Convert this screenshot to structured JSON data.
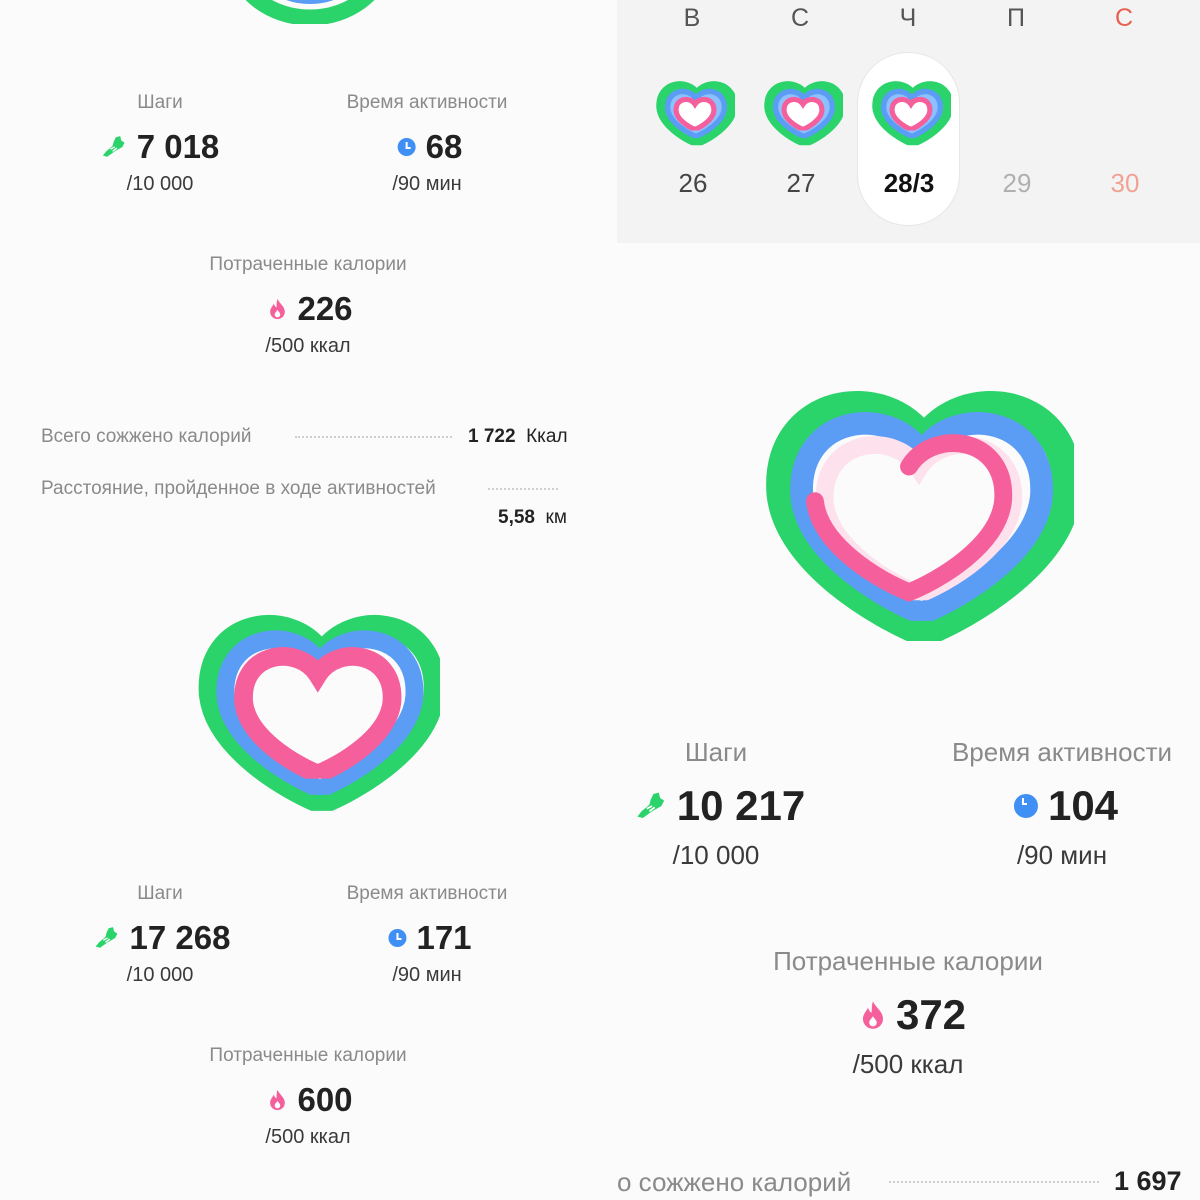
{
  "colors": {
    "green": "#2bd36b",
    "blue": "#5b9cf5",
    "pink": "#f5609c",
    "weekend_red": "#e8614f",
    "muted_gray": "#b0b0b0"
  },
  "left_top": {
    "steps_label": "Шаги",
    "steps_value": "7 018",
    "steps_goal": "/10 000",
    "activity_label": "Время активности",
    "activity_value": "68",
    "activity_goal": "/90 мин",
    "calories_label": "Потраченные калории",
    "calories_value": "226",
    "calories_goal": "/500 ккал",
    "total_burned_label": "Всего сожжено калорий",
    "total_burned_value": "1 722",
    "total_burned_unit": "Ккал",
    "distance_label": "Расстояние, пройденное в ходе активностей",
    "distance_value": "5,58",
    "distance_unit": "км"
  },
  "left_bottom": {
    "steps_label": "Шаги",
    "steps_value": "17 268",
    "steps_goal": "/10 000",
    "activity_label": "Время активности",
    "activity_value": "171",
    "activity_goal": "/90 мин",
    "calories_label": "Потраченные калории",
    "calories_value": "600",
    "calories_goal": "/500 ккал"
  },
  "week": {
    "letters": [
      "В",
      "С",
      "Ч",
      "П",
      "С"
    ],
    "dates": [
      "26",
      "27",
      "28/3",
      "29",
      "30"
    ]
  },
  "right": {
    "steps_label": "Шаги",
    "steps_value": "10 217",
    "steps_goal": "/10 000",
    "activity_label": "Время активности",
    "activity_value": "104",
    "activity_goal": "/90 мин",
    "calories_label": "Потраченные калории",
    "calories_value": "372",
    "calories_goal": "/500 ккал",
    "total_burned_label": "о сожжено калорий",
    "total_burned_value": "1 697"
  },
  "icons": {
    "steps": "shoe-icon",
    "activity": "clock-icon",
    "calories": "flame-icon"
  }
}
